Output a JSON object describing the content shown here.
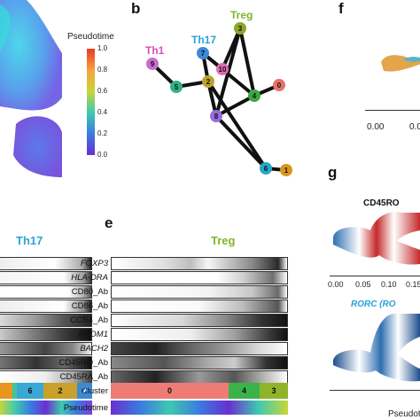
{
  "panels": {
    "b": "b",
    "e": "e",
    "f": "f",
    "g": "g"
  },
  "legend": {
    "title": "Pseudotime",
    "ticks": [
      "1.0",
      "0.8",
      "0.6",
      "0.4",
      "0.2",
      "0.0"
    ]
  },
  "trajectory": {
    "labels": {
      "th1": "Th1",
      "th17": "Th17",
      "treg": "Treg"
    },
    "nodes": [
      {
        "id": "0",
        "color": "#e8706c"
      },
      {
        "id": "1",
        "color": "#d8961e"
      },
      {
        "id": "2",
        "color": "#b8a52a"
      },
      {
        "id": "3",
        "color": "#8ea628"
      },
      {
        "id": "4",
        "color": "#39a845"
      },
      {
        "id": "5",
        "color": "#2fb08a"
      },
      {
        "id": "6",
        "color": "#27a8c6"
      },
      {
        "id": "7",
        "color": "#3b8ad6"
      },
      {
        "id": "8",
        "color": "#9a6bdc"
      },
      {
        "id": "9",
        "color": "#c86cd0"
      },
      {
        "id": "10",
        "color": "#e06ab4"
      }
    ]
  },
  "panel_f": {
    "ticks": [
      "0.00",
      "0.0"
    ]
  },
  "panel_g": {
    "title1": "CD45RO",
    "axis_ticks": [
      "0.00",
      "0.05",
      "0.10",
      "0.15"
    ],
    "title2": "RORC (RO",
    "xlabel": "Pseudot"
  },
  "th17_heatmap": {
    "label": "Th17",
    "cluster_labels": [
      "6",
      "2",
      "7"
    ]
  },
  "treg_heatmap": {
    "label": "Treg",
    "genes": [
      "FOXP3",
      "HLA-DRA",
      "CD80_Ab",
      "CD86_Ab",
      "CCR4_Ab",
      "PRDM1",
      "BACH2",
      "CD45RO_Ab",
      "CD45RA_Ab"
    ],
    "cluster_row_label": "Cluster",
    "pseudotime_row_label": "Pseudotime",
    "cluster_labels": [
      "0",
      "4",
      "3"
    ]
  },
  "colors": {
    "th17_label": "#29a3d8",
    "treg_label": "#7fb52c",
    "th1_label": "#d44fc0",
    "cd45ro_blue": "#2f6fb0",
    "cd45ro_red": "#c42a2a",
    "rorc_title": "#29a3d8"
  }
}
